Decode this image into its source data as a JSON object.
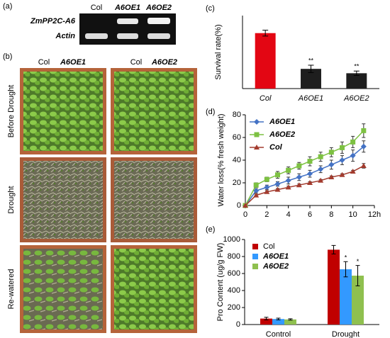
{
  "figure": {
    "panel_labels": [
      "(a)",
      "(b)",
      "(c)",
      "(d)",
      "(e)"
    ],
    "gel": {
      "lanes": [
        "Col",
        "A6OE1",
        "A6OE2"
      ],
      "rows": [
        "ZmPP2C-A6",
        "Actin"
      ]
    },
    "photos": {
      "top_labels": [
        "Col",
        "A6OE1",
        "Col",
        "A6OE2"
      ],
      "rows": [
        "Before Drought",
        "Drought",
        "Re-watered"
      ]
    }
  },
  "chart_data": [
    {
      "type": "bar",
      "ylabel": "Survival rate(%)",
      "categories": [
        "Col",
        "A6OE1",
        "A6OE2"
      ],
      "values": [
        76,
        27,
        21
      ],
      "errors": [
        4,
        5,
        3
      ],
      "colors": [
        "#e30613",
        "#1e1e1e",
        "#1e1e1e"
      ],
      "annotations": [
        null,
        "**",
        "**"
      ],
      "ylim": [
        0,
        100
      ]
    },
    {
      "type": "line",
      "ylabel": "Water loss(% fresh weight)",
      "x": [
        0,
        1,
        2,
        3,
        4,
        5,
        6,
        7,
        8,
        9,
        10,
        11
      ],
      "series": [
        {
          "name": "A6OE1",
          "color": "#4472c4",
          "marker": "diamond",
          "values": [
            0,
            13,
            16,
            19,
            22,
            25,
            28,
            32,
            36,
            40,
            44,
            52
          ],
          "errors": [
            0,
            2,
            2,
            2,
            3,
            3,
            3,
            3,
            4,
            4,
            5,
            5
          ]
        },
        {
          "name": "A6OE2",
          "color": "#7dc142",
          "marker": "square",
          "values": [
            0,
            18,
            23,
            27,
            31,
            35,
            39,
            43,
            47,
            51,
            56,
            66
          ],
          "errors": [
            0,
            2,
            2,
            3,
            3,
            3,
            4,
            4,
            4,
            5,
            5,
            6
          ]
        },
        {
          "name": "Col",
          "color": "#a33b2e",
          "marker": "triangle",
          "values": [
            0,
            9,
            12,
            14,
            16,
            18,
            20,
            22,
            25,
            27,
            30,
            35
          ],
          "errors": [
            0,
            1,
            1,
            1,
            1,
            1,
            1,
            1,
            1,
            1,
            1,
            2
          ]
        }
      ],
      "xlim": [
        0,
        12
      ],
      "xticks": [
        0,
        2,
        4,
        6,
        8,
        10,
        {
          "value": 12,
          "label": "12h"
        }
      ],
      "ylim": [
        0,
        80
      ],
      "yticks": [
        0,
        20,
        40,
        60,
        80
      ],
      "legend": "upper-left"
    },
    {
      "type": "grouped_bar",
      "ylabel": "Pro Content (ug/g FW)",
      "categories": [
        "Control",
        "Drought"
      ],
      "series": [
        {
          "name": "Col",
          "color": "#c00000",
          "values": [
            70,
            880
          ],
          "errors": [
            15,
            50
          ]
        },
        {
          "name": "A6OE1",
          "color": "#3399ff",
          "values": [
            65,
            650
          ],
          "errors": [
            10,
            90
          ]
        },
        {
          "name": "A6OE2",
          "color": "#8fc04f",
          "values": [
            60,
            575
          ],
          "errors": [
            8,
            120
          ]
        }
      ],
      "annotations": [
        null,
        "*",
        "*"
      ],
      "ylim": [
        0,
        1000
      ],
      "yticks": [
        0,
        200,
        400,
        600,
        800,
        1000
      ],
      "legend": "upper-left"
    }
  ]
}
